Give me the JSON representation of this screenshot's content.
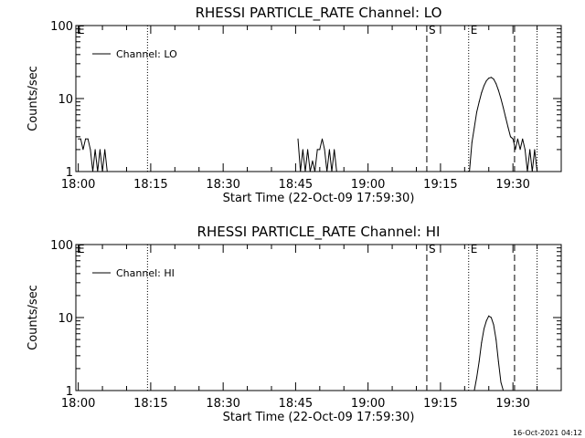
{
  "footer_timestamp": "16-Oct-2021 04:12",
  "chart_data": [
    {
      "type": "line",
      "title": "RHESSI PARTICLE_RATE Channel: LO",
      "xlabel": "Start Time (22-Oct-09 17:59:30)",
      "ylabel": "Counts/sec",
      "yscale": "log",
      "ylim": [
        1,
        100
      ],
      "xlim_minutes_from_start": [
        0,
        100.5
      ],
      "ytick_labels": [
        "1",
        "10",
        "100"
      ],
      "xtick_labels": [
        "18:00",
        "18:15",
        "18:30",
        "18:45",
        "19:00",
        "19:15",
        "19:30"
      ],
      "legend": {
        "label": "Channel: LO",
        "placement": "top-left"
      },
      "markers": [
        {
          "label": "E",
          "time": "17:59:30",
          "style": "dotted"
        },
        {
          "label": "",
          "time": "18:14:20",
          "style": "dotted"
        },
        {
          "label": "S",
          "time": "19:12:10",
          "style": "dashed"
        },
        {
          "label": "E",
          "time": "19:20:50",
          "style": "dotted"
        },
        {
          "label": "",
          "time": "19:30:20",
          "style": "dashed"
        },
        {
          "label": "",
          "time": "19:35:00",
          "style": "dotted"
        }
      ],
      "series": [
        {
          "name": "Channel: LO",
          "x": [
            "18:00:00",
            "18:00:30",
            "18:01:00",
            "18:01:30",
            "18:02:00",
            "18:02:30",
            "18:03:00",
            "18:03:30",
            "18:04:00",
            "18:04:30",
            "18:05:00",
            "18:05:30",
            "18:06:00",
            "18:45:30",
            "18:46:00",
            "18:46:30",
            "18:47:00",
            "18:47:30",
            "18:48:00",
            "18:48:30",
            "18:49:00",
            "18:49:30",
            "18:50:00",
            "18:50:30",
            "18:51:00",
            "18:51:30",
            "18:52:00",
            "18:52:30",
            "18:53:00",
            "18:53:30",
            "19:21:00",
            "19:21:30",
            "19:22:00",
            "19:22:30",
            "19:23:00",
            "19:23:30",
            "19:24:00",
            "19:24:30",
            "19:25:00",
            "19:25:30",
            "19:26:00",
            "19:26:30",
            "19:27:00",
            "19:27:30",
            "19:28:00",
            "19:28:30",
            "19:29:00",
            "19:29:30",
            "19:30:00",
            "19:30:30",
            "19:31:00",
            "19:31:30",
            "19:32:00",
            "19:32:30",
            "19:33:00",
            "19:33:30",
            "19:34:00",
            "19:34:30",
            "19:35:00",
            "19:35:30"
          ],
          "y": [
            2.8,
            2.8,
            2.0,
            2.8,
            2.8,
            2.0,
            1.0,
            2.0,
            1.0,
            2.0,
            1.0,
            2.0,
            1.0,
            2.8,
            1.0,
            2.0,
            1.0,
            2.0,
            1.0,
            1.4,
            1.0,
            2.0,
            2.0,
            2.8,
            2.0,
            1.0,
            2.0,
            1.0,
            2.0,
            1.0,
            1.0,
            2.5,
            4.0,
            6.5,
            9.0,
            12.0,
            15.0,
            17.5,
            19.0,
            19.5,
            18.5,
            16.0,
            13.0,
            10.0,
            7.5,
            5.5,
            4.0,
            3.0,
            2.8,
            2.0,
            2.8,
            2.0,
            2.8,
            2.0,
            1.0,
            2.0,
            1.0,
            2.0,
            1.0,
            1.0
          ]
        }
      ]
    },
    {
      "type": "line",
      "title": "RHESSI PARTICLE_RATE Channel: HI",
      "xlabel": "Start Time (22-Oct-09 17:59:30)",
      "ylabel": "Counts/sec",
      "yscale": "log",
      "ylim": [
        1,
        100
      ],
      "xlim_minutes_from_start": [
        0,
        100.5
      ],
      "ytick_labels": [
        "1",
        "10",
        "100"
      ],
      "xtick_labels": [
        "18:00",
        "18:15",
        "18:30",
        "18:45",
        "19:00",
        "19:15",
        "19:30"
      ],
      "legend": {
        "label": "Channel: HI",
        "placement": "top-left"
      },
      "markers": [
        {
          "label": "E",
          "time": "17:59:30",
          "style": "dotted"
        },
        {
          "label": "",
          "time": "18:14:20",
          "style": "dotted"
        },
        {
          "label": "S",
          "time": "19:12:10",
          "style": "dashed"
        },
        {
          "label": "E",
          "time": "19:20:50",
          "style": "dotted"
        },
        {
          "label": "",
          "time": "19:30:20",
          "style": "dashed"
        },
        {
          "label": "",
          "time": "19:35:00",
          "style": "dotted"
        }
      ],
      "series": [
        {
          "name": "Channel: HI",
          "x": [
            "19:22:00",
            "19:22:30",
            "19:23:00",
            "19:23:30",
            "19:24:00",
            "19:24:30",
            "19:25:00",
            "19:25:30",
            "19:26:00",
            "19:26:30",
            "19:27:00",
            "19:27:30",
            "19:28:00"
          ],
          "y": [
            1.0,
            1.5,
            2.5,
            4.5,
            7.0,
            9.0,
            10.5,
            10.0,
            8.0,
            5.0,
            2.5,
            1.3,
            1.0
          ]
        }
      ]
    }
  ]
}
